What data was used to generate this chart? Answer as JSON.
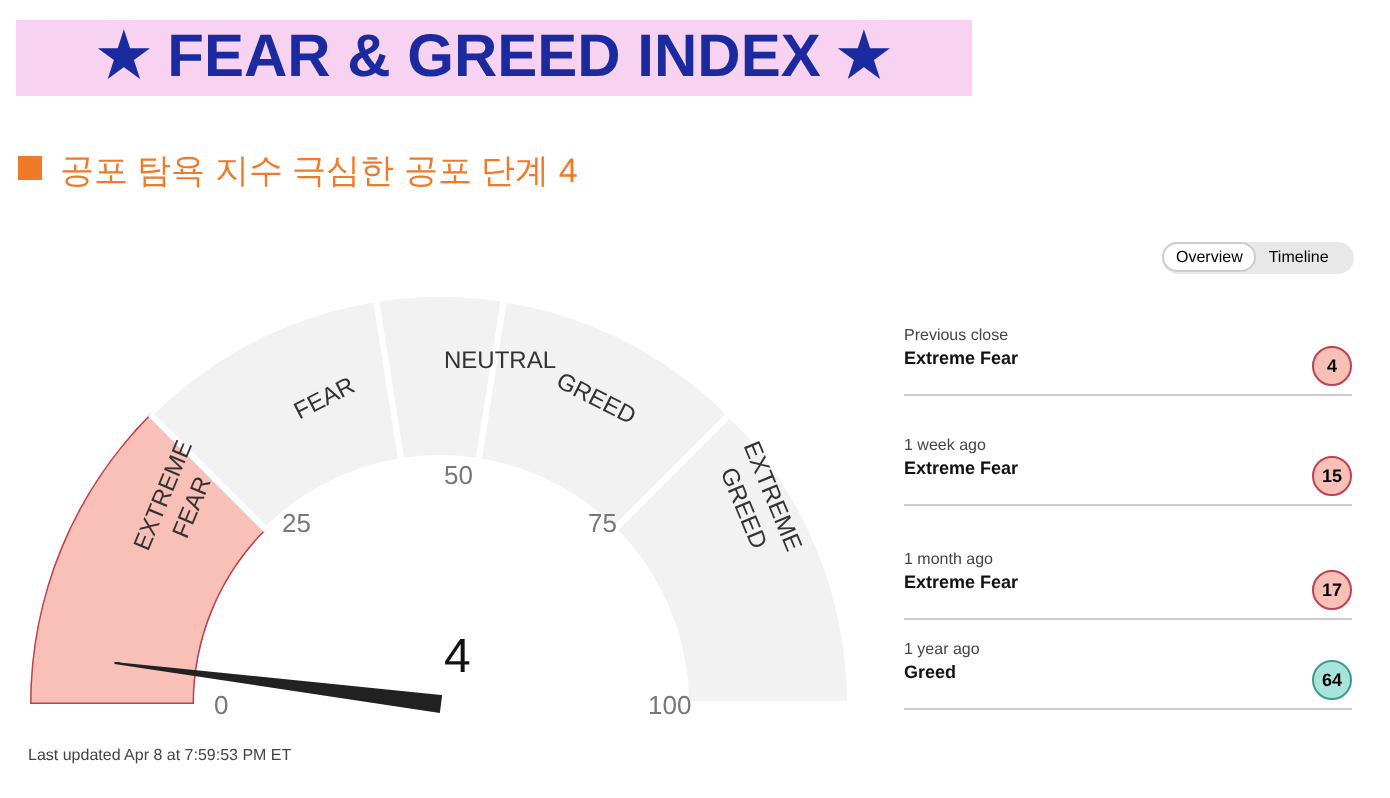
{
  "chart_data": {
    "type": "donut",
    "title": "★ FEAR & GREED INDEX ★",
    "subtitle": "공포 탐욕 지수 극심한 공포 단계 4",
    "categories": [
      "EXTREME FEAR",
      "FEAR",
      "NEUTRAL",
      "GREED",
      "EXTREME GREED"
    ],
    "values": [
      25,
      20,
      10,
      20,
      25
    ],
    "colors": [
      "#f9c0b8",
      "#f2f2f2",
      "#f2f2f2",
      "#f2f2f2",
      "#f2f2f2"
    ],
    "needle": "EXTREME FEAR",
    "annotations": [
      "4",
      "0",
      "25",
      "50",
      "75",
      "100",
      "Overview",
      "Timeline",
      "Previous close",
      "Extreme Fear",
      "4",
      "1 week ago",
      "Extreme Fear",
      "15",
      "1 month ago",
      "Extreme Fear",
      "17",
      "1 year ago",
      "Greed",
      "64",
      "Last updated Apr 8 at 7:59:53 PM ET"
    ]
  }
}
